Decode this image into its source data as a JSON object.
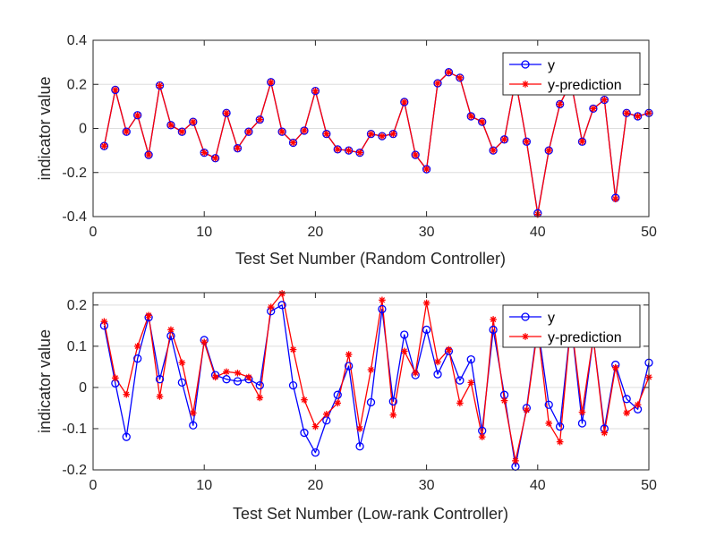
{
  "colors": {
    "actual": "#0000ff",
    "prediction": "#ff0000",
    "axis": "#262626",
    "grid": "#dedede"
  },
  "chart_data": [
    {
      "type": "line",
      "title": "",
      "xlabel": "Test Set Number (Random Controller)",
      "ylabel": "indicator value",
      "xlim": [
        0,
        50
      ],
      "ylim": [
        -0.4,
        0.4
      ],
      "xticks": [
        0,
        10,
        20,
        30,
        40,
        50
      ],
      "yticks": [
        -0.4,
        -0.2,
        0,
        0.2,
        0.4
      ],
      "ytick_labels": [
        "-0.4",
        "-0.2",
        "0",
        "0.2",
        "0.4"
      ],
      "grid": "horizontal",
      "legend_position": "top-right",
      "x": [
        1,
        2,
        3,
        4,
        5,
        6,
        7,
        8,
        9,
        10,
        11,
        12,
        13,
        14,
        15,
        16,
        17,
        18,
        19,
        20,
        21,
        22,
        23,
        24,
        25,
        26,
        27,
        28,
        29,
        30,
        31,
        32,
        33,
        34,
        35,
        36,
        37,
        38,
        39,
        40,
        41,
        42,
        43,
        44,
        45,
        46,
        47,
        48,
        49,
        50
      ],
      "series": [
        {
          "name": "y",
          "marker": "circle",
          "values": [
            -0.08,
            0.175,
            -0.015,
            0.06,
            -0.12,
            0.195,
            0.015,
            -0.015,
            0.03,
            -0.11,
            -0.135,
            0.07,
            -0.09,
            -0.015,
            0.04,
            0.21,
            -0.015,
            -0.065,
            -0.01,
            0.17,
            -0.025,
            -0.095,
            -0.1,
            -0.11,
            -0.025,
            -0.035,
            -0.025,
            0.12,
            -0.12,
            -0.185,
            0.205,
            0.255,
            0.23,
            0.055,
            0.03,
            -0.1,
            -0.05,
            0.22,
            -0.06,
            -0.385,
            -0.1,
            0.11,
            0.21,
            -0.06,
            0.09,
            0.13,
            -0.315,
            0.07,
            0.055,
            0.07
          ]
        },
        {
          "name": "y-prediction",
          "marker": "asterisk",
          "values": [
            -0.08,
            0.175,
            -0.015,
            0.06,
            -0.12,
            0.195,
            0.015,
            -0.015,
            0.03,
            -0.11,
            -0.135,
            0.07,
            -0.09,
            -0.015,
            0.04,
            0.21,
            -0.015,
            -0.065,
            -0.01,
            0.17,
            -0.025,
            -0.095,
            -0.1,
            -0.11,
            -0.025,
            -0.035,
            -0.025,
            0.12,
            -0.12,
            -0.185,
            0.205,
            0.255,
            0.23,
            0.055,
            0.03,
            -0.1,
            -0.05,
            0.22,
            -0.06,
            -0.39,
            -0.1,
            0.11,
            0.21,
            -0.06,
            0.09,
            0.13,
            -0.32,
            0.07,
            0.055,
            0.07
          ]
        }
      ]
    },
    {
      "type": "line",
      "title": "",
      "xlabel": "Test Set Number (Low-rank Controller)",
      "ylabel": "indicator value",
      "xlim": [
        0,
        50
      ],
      "ylim": [
        -0.2,
        0.23
      ],
      "xticks": [
        0,
        10,
        20,
        30,
        40,
        50
      ],
      "yticks": [
        -0.2,
        -0.1,
        0,
        0.1,
        0.2
      ],
      "ytick_labels": [
        "-0.2",
        "-0.1",
        "0",
        "0.1",
        "0.2"
      ],
      "grid": "horizontal",
      "legend_position": "top-right",
      "x": [
        1,
        2,
        3,
        4,
        5,
        6,
        7,
        8,
        9,
        10,
        11,
        12,
        13,
        14,
        15,
        16,
        17,
        18,
        19,
        20,
        21,
        22,
        23,
        24,
        25,
        26,
        27,
        28,
        29,
        30,
        31,
        32,
        33,
        34,
        35,
        36,
        37,
        38,
        39,
        40,
        41,
        42,
        43,
        44,
        45,
        46,
        47,
        48,
        49,
        50
      ],
      "series": [
        {
          "name": "y",
          "marker": "circle",
          "values": [
            0.15,
            0.01,
            -0.12,
            0.07,
            0.17,
            0.02,
            0.125,
            0.012,
            -0.092,
            0.115,
            0.03,
            0.02,
            0.015,
            0.02,
            0.005,
            0.185,
            0.2,
            0.005,
            -0.11,
            -0.158,
            -0.08,
            -0.018,
            0.052,
            -0.143,
            -0.036,
            0.19,
            -0.034,
            0.128,
            0.03,
            0.14,
            0.032,
            0.088,
            0.017,
            0.068,
            -0.105,
            0.14,
            -0.018,
            -0.192,
            -0.05,
            0.15,
            -0.042,
            -0.095,
            0.16,
            -0.087,
            0.12,
            -0.1,
            0.055,
            -0.028,
            -0.053,
            0.06
          ]
        },
        {
          "name": "y-prediction",
          "marker": "asterisk",
          "values": [
            0.16,
            0.023,
            -0.017,
            0.1,
            0.175,
            -0.022,
            0.14,
            0.06,
            -0.062,
            0.11,
            0.025,
            0.038,
            0.035,
            0.025,
            -0.025,
            0.195,
            0.228,
            0.092,
            -0.03,
            -0.095,
            -0.065,
            -0.038,
            0.08,
            -0.1,
            0.043,
            0.212,
            -0.067,
            0.088,
            0.035,
            0.205,
            0.062,
            0.092,
            -0.038,
            0.012,
            -0.12,
            0.165,
            -0.032,
            -0.178,
            -0.055,
            0.142,
            -0.087,
            -0.132,
            0.16,
            -0.06,
            0.12,
            -0.11,
            0.048,
            -0.062,
            -0.042,
            0.025
          ]
        }
      ]
    }
  ]
}
